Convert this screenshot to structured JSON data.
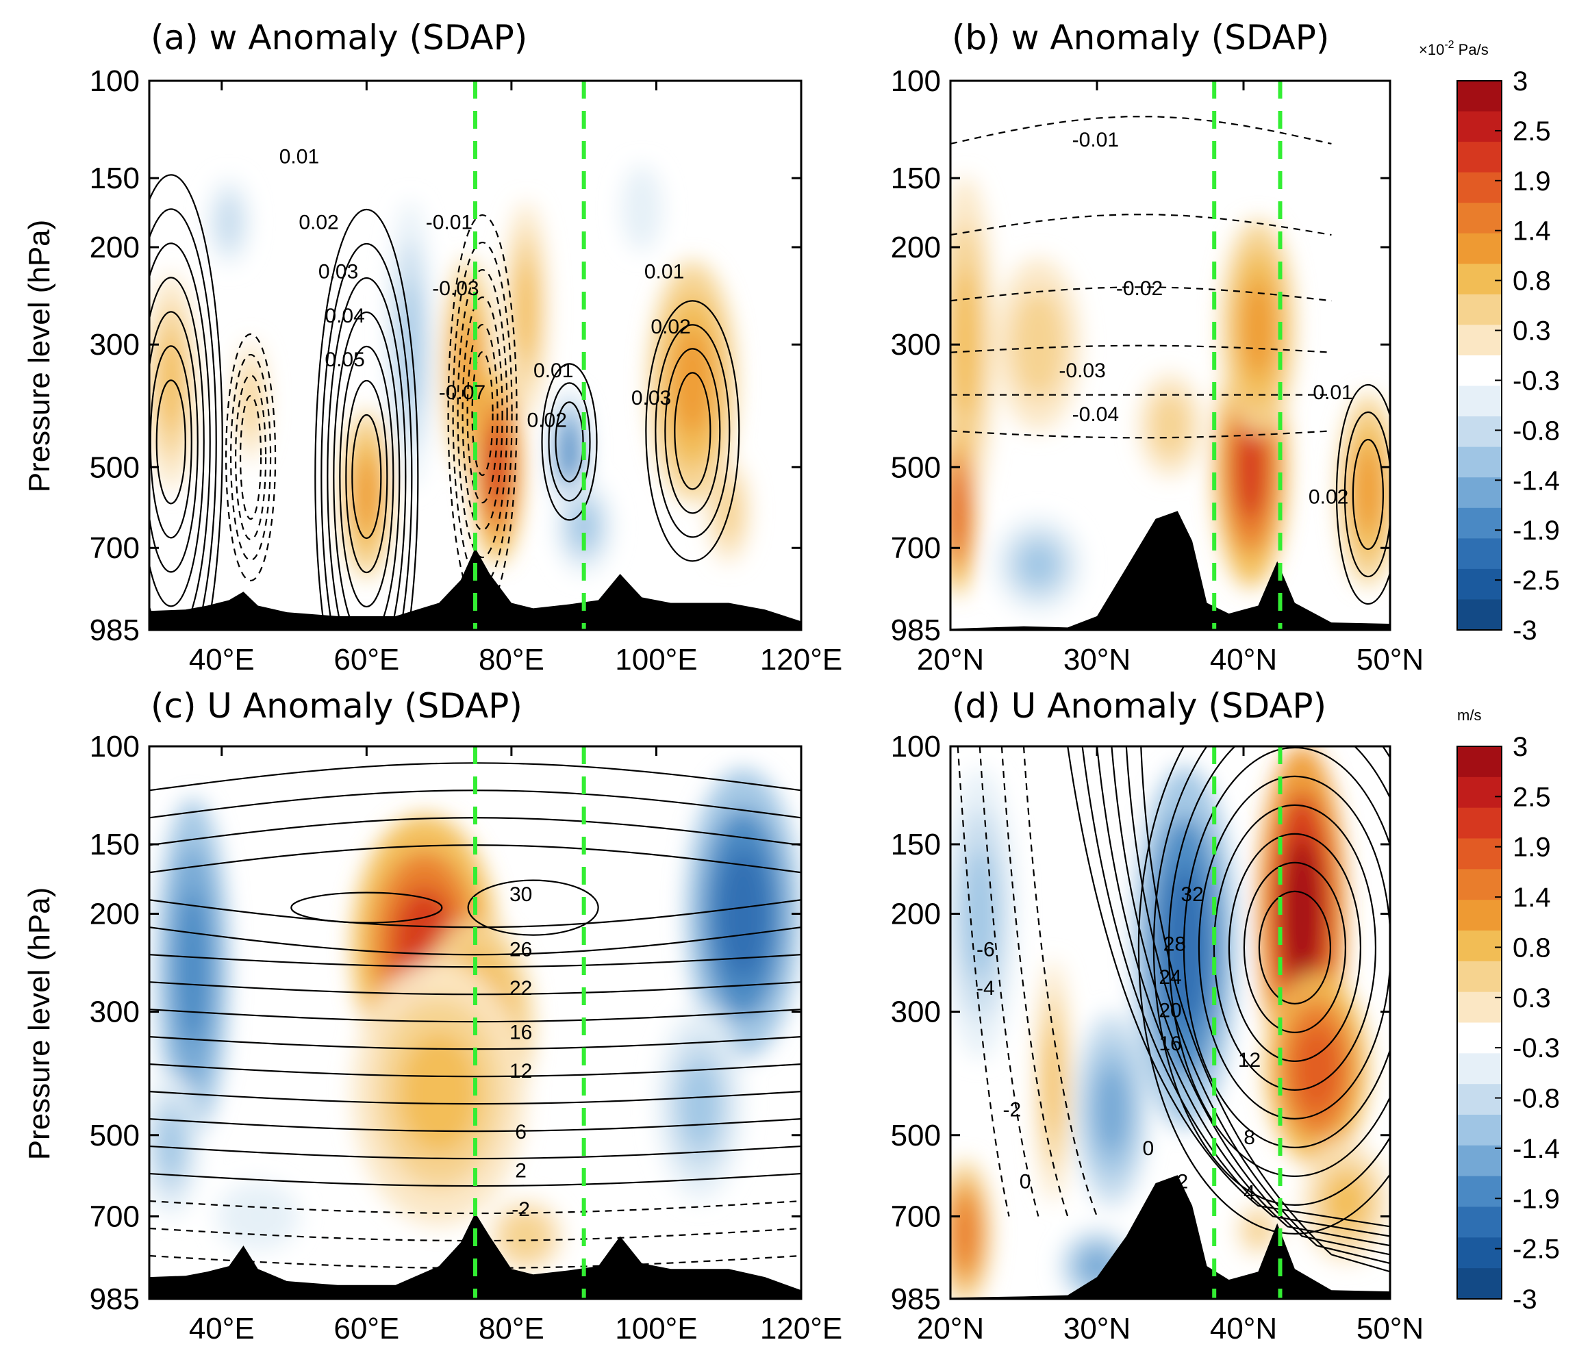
{
  "figure": {
    "colorbar_levels": [
      3,
      2.5,
      1.9,
      1.4,
      0.8,
      0.3,
      -0.3,
      -0.8,
      -1.4,
      -1.9,
      -2.5,
      -3
    ],
    "colorbar_top_unit": "×10",
    "colorbar_top_exponent": "-2",
    "colorbar_top_unit_suffix": " Pa/s",
    "colorbar_bottom_unit": "m/s",
    "colors": {
      "warm": [
        "#fbe7c4",
        "#f6d38f",
        "#f2bd55",
        "#ee9a33",
        "#e97d2c",
        "#e25b24",
        "#d6381f",
        "#c11d1b",
        "#a30e14"
      ],
      "cool": [
        "#e6f0f8",
        "#c6dcee",
        "#9fc5e4",
        "#74a8d5",
        "#4a89c4",
        "#2e6fb2",
        "#1b5a9e",
        "#134a86"
      ],
      "reference_line": "#33ee33",
      "topography": "#000000"
    }
  },
  "chart_data": [
    {
      "panel": "a",
      "type": "heatmap",
      "title": "(a) w Anomaly (SDAP)",
      "xlabel": "",
      "ylabel": "Pressure level (hPa)",
      "x_unit": "°E",
      "xlim": [
        30,
        120
      ],
      "xticks": [
        "40°E",
        "60°E",
        "80°E",
        "100°E",
        "120°E"
      ],
      "ylim": [
        100,
        985
      ],
      "yticks": [
        "100",
        "150",
        "200",
        "300",
        "500",
        "700",
        "985"
      ],
      "reference_lines_x": [
        75,
        90
      ],
      "contour_labels": [
        "0.01",
        "0.02",
        "0.03",
        "0.04",
        "0.05",
        "-0.01",
        "-0.03",
        "-0.07",
        "0.01",
        "0.02",
        "0.01",
        "0.02",
        "0.03"
      ],
      "anomaly_blobs": [
        {
          "x": 33,
          "p": 350,
          "rx": 3.5,
          "rp": 0.45,
          "v": 1.0
        },
        {
          "x": 44,
          "p": 380,
          "rx": 3,
          "rp": 0.35,
          "v": 0.6
        },
        {
          "x": 41,
          "p": 180,
          "rx": 4,
          "rp": 0.25,
          "v": -0.6
        },
        {
          "x": 60,
          "p": 560,
          "rx": 3.5,
          "rp": 0.35,
          "v": 1.2
        },
        {
          "x": 66,
          "p": 300,
          "rx": 3,
          "rp": 0.6,
          "v": -0.9
        },
        {
          "x": 74,
          "p": 330,
          "rx": 3.5,
          "rp": 0.45,
          "v": 1.2
        },
        {
          "x": 78,
          "p": 500,
          "rx": 3.5,
          "rp": 0.4,
          "v": 2.1
        },
        {
          "x": 82,
          "p": 260,
          "rx": 3,
          "rp": 0.45,
          "v": 1.0
        },
        {
          "x": 88,
          "p": 470,
          "rx": 2.5,
          "rp": 0.25,
          "v": -1.8
        },
        {
          "x": 90,
          "p": 640,
          "rx": 4,
          "rp": 0.2,
          "v": -0.9
        },
        {
          "x": 105,
          "p": 350,
          "rx": 6,
          "rp": 0.5,
          "v": 1.3
        },
        {
          "x": 110,
          "p": 600,
          "rx": 4,
          "rp": 0.3,
          "v": 0.5
        },
        {
          "x": 98,
          "p": 170,
          "rx": 4,
          "rp": 0.25,
          "v": -0.4
        }
      ],
      "topography": [
        [
          30,
          910
        ],
        [
          35,
          905
        ],
        [
          38,
          890
        ],
        [
          41,
          870
        ],
        [
          43,
          840
        ],
        [
          45,
          890
        ],
        [
          49,
          915
        ],
        [
          56,
          930
        ],
        [
          64,
          930
        ],
        [
          70,
          880
        ],
        [
          73,
          800
        ],
        [
          75,
          700
        ],
        [
          77,
          780
        ],
        [
          80,
          880
        ],
        [
          83,
          900
        ],
        [
          88,
          885
        ],
        [
          92,
          870
        ],
        [
          95,
          780
        ],
        [
          98,
          860
        ],
        [
          102,
          880
        ],
        [
          110,
          880
        ],
        [
          115,
          905
        ],
        [
          120,
          950
        ]
      ]
    },
    {
      "panel": "b",
      "type": "heatmap",
      "title": "(b) w Anomaly (SDAP)",
      "xlabel": "",
      "ylabel": "",
      "x_unit": "°N",
      "xlim": [
        20,
        50
      ],
      "xticks": [
        "20°N",
        "30°N",
        "40°N",
        "50°N"
      ],
      "ylim": [
        100,
        985
      ],
      "yticks": [
        "100",
        "150",
        "200",
        "300",
        "500",
        "700",
        "985"
      ],
      "reference_lines_x": [
        38,
        42.5
      ],
      "contour_labels": [
        "-0.01",
        "-0.02",
        "-0.03",
        "-0.04",
        "0.01",
        "0.02"
      ],
      "anomaly_blobs": [
        {
          "x": 21,
          "p": 300,
          "rx": 2,
          "rp": 0.7,
          "v": 1.0
        },
        {
          "x": 20.5,
          "p": 600,
          "rx": 1.2,
          "rp": 0.35,
          "v": 1.9
        },
        {
          "x": 26,
          "p": 300,
          "rx": 4,
          "rp": 0.5,
          "v": 0.5
        },
        {
          "x": 26,
          "p": 750,
          "rx": 3,
          "rp": 0.2,
          "v": -0.9
        },
        {
          "x": 40.5,
          "p": 500,
          "rx": 2.5,
          "rp": 0.5,
          "v": 2.2
        },
        {
          "x": 41,
          "p": 280,
          "rx": 2.5,
          "rp": 0.45,
          "v": 1.1
        },
        {
          "x": 48.5,
          "p": 550,
          "rx": 2,
          "rp": 0.4,
          "v": 1.2
        },
        {
          "x": 35,
          "p": 420,
          "rx": 3,
          "rp": 0.3,
          "v": 0.5
        }
      ],
      "topography": [
        [
          20,
          980
        ],
        [
          25,
          970
        ],
        [
          28,
          975
        ],
        [
          30,
          930
        ],
        [
          32,
          760
        ],
        [
          34,
          620
        ],
        [
          35.5,
          600
        ],
        [
          36.5,
          680
        ],
        [
          37.5,
          880
        ],
        [
          39,
          920
        ],
        [
          41,
          890
        ],
        [
          42.3,
          740
        ],
        [
          43.5,
          880
        ],
        [
          46,
          955
        ],
        [
          50,
          960
        ]
      ]
    },
    {
      "panel": "c",
      "type": "heatmap",
      "title": "(c) U Anomaly (SDAP)",
      "xlabel": "",
      "ylabel": "Pressure level (hPa)",
      "x_unit": "°E",
      "xlim": [
        30,
        120
      ],
      "xticks": [
        "40°E",
        "60°E",
        "80°E",
        "100°E",
        "120°E"
      ],
      "ylim": [
        100,
        985
      ],
      "yticks": [
        "100",
        "150",
        "200",
        "300",
        "500",
        "700",
        "985"
      ],
      "reference_lines_x": [
        75,
        90
      ],
      "contour_labels": [
        "30",
        "26",
        "22",
        "16",
        "12",
        "6",
        "2",
        "-2"
      ],
      "anomaly_blobs": [
        {
          "x": 68,
          "p": 230,
          "rx": 10,
          "rp": 0.55,
          "v": 2.1
        },
        {
          "x": 75,
          "p": 320,
          "rx": 8,
          "rp": 0.45,
          "v": 1.1
        },
        {
          "x": 70,
          "p": 420,
          "rx": 12,
          "rp": 0.55,
          "v": 1.0
        },
        {
          "x": 36,
          "p": 250,
          "rx": 5,
          "rp": 0.7,
          "v": -1.9
        },
        {
          "x": 33,
          "p": 520,
          "rx": 4,
          "rp": 0.3,
          "v": -1.0
        },
        {
          "x": 112,
          "p": 200,
          "rx": 8,
          "rp": 0.6,
          "v": -2.2
        },
        {
          "x": 106,
          "p": 440,
          "rx": 6,
          "rp": 0.4,
          "v": -1.0
        },
        {
          "x": 82,
          "p": 760,
          "rx": 5,
          "rp": 0.15,
          "v": 0.7
        },
        {
          "x": 45,
          "p": 700,
          "rx": 8,
          "rp": 0.2,
          "v": -0.4
        }
      ],
      "topography": [
        [
          30,
          900
        ],
        [
          35,
          895
        ],
        [
          38,
          880
        ],
        [
          41,
          860
        ],
        [
          43,
          790
        ],
        [
          45,
          870
        ],
        [
          49,
          915
        ],
        [
          56,
          930
        ],
        [
          64,
          930
        ],
        [
          70,
          860
        ],
        [
          73,
          780
        ],
        [
          75,
          690
        ],
        [
          77,
          760
        ],
        [
          80,
          870
        ],
        [
          83,
          890
        ],
        [
          88,
          875
        ],
        [
          92,
          860
        ],
        [
          95,
          760
        ],
        [
          98,
          850
        ],
        [
          102,
          870
        ],
        [
          110,
          870
        ],
        [
          115,
          900
        ],
        [
          120,
          950
        ]
      ]
    },
    {
      "panel": "d",
      "type": "heatmap",
      "title": "(d) U Anomaly (SDAP)",
      "xlabel": "",
      "ylabel": "",
      "x_unit": "°N",
      "xlim": [
        20,
        50
      ],
      "xticks": [
        "20°N",
        "30°N",
        "40°N",
        "50°N"
      ],
      "ylim": [
        100,
        985
      ],
      "yticks": [
        "100",
        "150",
        "200",
        "300",
        "500",
        "700",
        "985"
      ],
      "reference_lines_x": [
        38,
        42.5
      ],
      "contour_labels": [
        "32",
        "28",
        "24",
        "20",
        "16",
        "12",
        "8",
        "4",
        "-6",
        "-4",
        "-2",
        "0",
        "0",
        "-2"
      ],
      "anomaly_blobs": [
        {
          "x": 44,
          "p": 200,
          "rx": 3,
          "rp": 0.7,
          "v": 3.0
        },
        {
          "x": 45,
          "p": 380,
          "rx": 3.5,
          "rp": 0.4,
          "v": 2.0
        },
        {
          "x": 36,
          "p": 230,
          "rx": 3.5,
          "rp": 0.75,
          "v": -2.2
        },
        {
          "x": 31,
          "p": 450,
          "rx": 2.5,
          "rp": 0.4,
          "v": -1.2
        },
        {
          "x": 22,
          "p": 200,
          "rx": 2.5,
          "rp": 0.6,
          "v": -1.0
        },
        {
          "x": 27,
          "p": 400,
          "rx": 1.2,
          "rp": 0.5,
          "v": 0.8
        },
        {
          "x": 21,
          "p": 750,
          "rx": 1.8,
          "rp": 0.3,
          "v": 1.6
        },
        {
          "x": 30,
          "p": 860,
          "rx": 2.5,
          "rp": 0.15,
          "v": -1.2
        },
        {
          "x": 41,
          "p": 740,
          "rx": 2,
          "rp": 0.15,
          "v": 0.6
        },
        {
          "x": 47,
          "p": 660,
          "rx": 3,
          "rp": 0.25,
          "v": 0.9
        }
      ],
      "topography": [
        [
          20,
          980
        ],
        [
          25,
          975
        ],
        [
          28,
          970
        ],
        [
          30,
          900
        ],
        [
          32,
          760
        ],
        [
          34,
          610
        ],
        [
          35.5,
          590
        ],
        [
          36.5,
          670
        ],
        [
          37.5,
          860
        ],
        [
          39,
          910
        ],
        [
          41,
          880
        ],
        [
          42.3,
          720
        ],
        [
          43.5,
          870
        ],
        [
          46,
          950
        ],
        [
          50,
          955
        ]
      ]
    }
  ]
}
